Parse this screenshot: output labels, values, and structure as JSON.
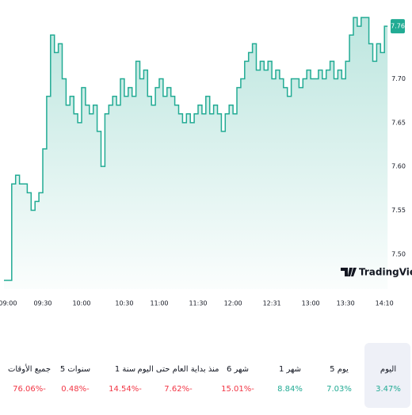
{
  "chart_data": {
    "type": "line",
    "categories": [
      null,
      "09:00",
      null,
      null,
      null,
      null,
      null,
      null,
      null,
      null,
      "09:30",
      null,
      null,
      null,
      null,
      null,
      null,
      null,
      null,
      null,
      "10:00",
      null,
      null,
      null,
      null,
      null,
      null,
      null,
      null,
      null,
      null,
      "10:30",
      null,
      null,
      null,
      null,
      null,
      null,
      null,
      null,
      "11:00",
      null,
      null,
      null,
      null,
      null,
      null,
      null,
      null,
      null,
      "11:30",
      null,
      null,
      null,
      null,
      null,
      null,
      null,
      null,
      "12:00",
      null,
      null,
      null,
      null,
      null,
      null,
      null,
      null,
      null,
      "12:31",
      null,
      null,
      null,
      null,
      null,
      null,
      null,
      null,
      null,
      "13:00",
      null,
      null,
      null,
      null,
      null,
      null,
      null,
      null,
      "13:30",
      null,
      null,
      null,
      null,
      null,
      null,
      null,
      null,
      null,
      "14:10"
    ],
    "values": [
      7.47,
      7.47,
      7.58,
      7.59,
      7.58,
      7.58,
      7.57,
      7.55,
      7.56,
      7.57,
      7.62,
      7.68,
      7.75,
      7.73,
      7.74,
      7.7,
      7.67,
      7.68,
      7.66,
      7.65,
      7.69,
      7.67,
      7.66,
      7.67,
      7.64,
      7.6,
      7.66,
      7.67,
      7.68,
      7.67,
      7.7,
      7.68,
      7.69,
      7.68,
      7.72,
      7.7,
      7.71,
      7.68,
      7.67,
      7.69,
      7.7,
      7.68,
      7.69,
      7.68,
      7.67,
      7.66,
      7.65,
      7.66,
      7.65,
      7.66,
      7.67,
      7.66,
      7.68,
      7.66,
      7.67,
      7.66,
      7.64,
      7.66,
      7.67,
      7.66,
      7.69,
      7.7,
      7.72,
      7.73,
      7.74,
      7.71,
      7.72,
      7.71,
      7.72,
      7.7,
      7.71,
      7.7,
      7.69,
      7.68,
      7.7,
      7.7,
      7.69,
      7.7,
      7.71,
      7.7,
      7.7,
      7.71,
      7.7,
      7.71,
      7.72,
      7.7,
      7.71,
      7.7,
      7.72,
      7.75,
      7.77,
      7.76,
      7.77,
      7.77,
      7.74,
      7.72,
      7.74,
      7.73,
      7.76
    ],
    "color": "#22ab94",
    "ylim": [
      7.46,
      7.79
    ],
    "yticks": [
      {
        "value": 7.5,
        "label": "7.50"
      },
      7.55,
      {
        "value": 7.6,
        "label": "7.60"
      },
      7.65,
      {
        "value": 7.7,
        "label": "7.70"
      }
    ],
    "grid": false,
    "watermark": "TradingView"
  },
  "performance": [
    {
      "label": "اليوم",
      "change": "3.47%",
      "color": "#22ab94",
      "selected": true
    },
    {
      "label": "5 يوم",
      "change": "7.03%",
      "color": "#22ab94",
      "selected": false
    },
    {
      "label": "1 شهر",
      "change": "8.84%",
      "color": "#22ab94",
      "selected": false
    },
    {
      "label": "6 شهر",
      "change": "15.01%-",
      "color": "#f23645",
      "selected": false
    },
    {
      "label": "منذ بداية العام حتى اليوم",
      "change": "7.62%-",
      "color": "#f23645",
      "selected": false
    },
    {
      "label": "1 سنة",
      "change": "14.54%-",
      "color": "#f23645",
      "selected": false
    },
    {
      "label": "5 سنوات",
      "change": "0.48%-",
      "color": "#f23645",
      "selected": false
    },
    {
      "label": "جميع الأوقات",
      "change": "76.06%-",
      "color": "#f23645",
      "selected": false
    }
  ]
}
